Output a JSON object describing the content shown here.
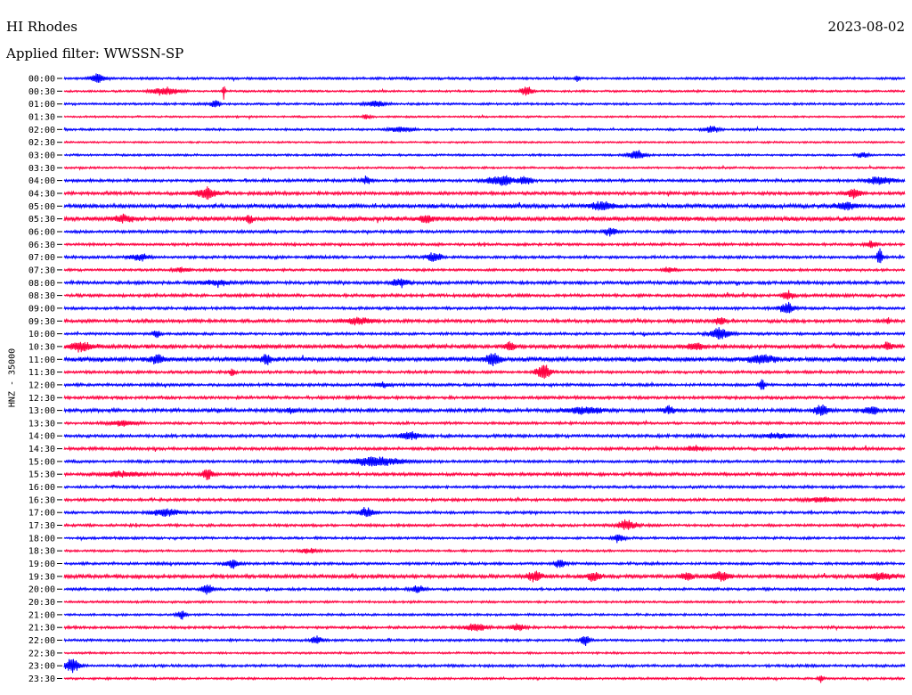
{
  "header": {
    "station": "HI Rhodes",
    "date": "2023-08-02",
    "filter_label": "Applied filter: WWSSN-SP"
  },
  "chart_data": {
    "type": "line",
    "title": "HI Rhodes",
    "subtitle": "Applied filter: WWSSN-SP",
    "date": "2023-08-02",
    "ylabel": "HNZ - 35000",
    "xlabel": "",
    "grid": false,
    "row_interval_minutes": 30,
    "colors": [
      "#0000ff",
      "#ff0040"
    ],
    "rows": [
      {
        "label": "00:00",
        "color": "#0000ff",
        "amp": 1.2,
        "events": [
          [
            0.04,
            6,
            10
          ],
          [
            0.61,
            4,
            3
          ]
        ]
      },
      {
        "label": "00:30",
        "color": "#ff0040",
        "amp": 1.0,
        "events": [
          [
            0.12,
            5,
            20
          ],
          [
            0.55,
            6,
            8
          ],
          [
            0.19,
            9,
            2
          ]
        ]
      },
      {
        "label": "01:00",
        "color": "#0000ff",
        "amp": 1.1,
        "events": [
          [
            0.18,
            5,
            6
          ],
          [
            0.37,
            4,
            14
          ]
        ]
      },
      {
        "label": "01:30",
        "color": "#ff0040",
        "amp": 0.9,
        "events": [
          [
            0.36,
            3,
            5
          ]
        ]
      },
      {
        "label": "02:00",
        "color": "#0000ff",
        "amp": 1.1,
        "events": [
          [
            0.4,
            3,
            18
          ],
          [
            0.77,
            4,
            10
          ]
        ]
      },
      {
        "label": "02:30",
        "color": "#ff0040",
        "amp": 0.9,
        "events": []
      },
      {
        "label": "03:00",
        "color": "#0000ff",
        "amp": 1.0,
        "events": [
          [
            0.68,
            6,
            12
          ],
          [
            0.95,
            3,
            8
          ]
        ]
      },
      {
        "label": "03:30",
        "color": "#ff0040",
        "amp": 1.0,
        "events": []
      },
      {
        "label": "04:00",
        "color": "#0000ff",
        "amp": 1.4,
        "events": [
          [
            0.36,
            5,
            6
          ],
          [
            0.52,
            6,
            20
          ],
          [
            0.55,
            5,
            8
          ],
          [
            0.97,
            5,
            18
          ]
        ]
      },
      {
        "label": "04:30",
        "color": "#ff0040",
        "amp": 1.6,
        "events": [
          [
            0.17,
            7,
            14
          ],
          [
            0.94,
            6,
            10
          ]
        ]
      },
      {
        "label": "05:00",
        "color": "#0000ff",
        "amp": 2.0,
        "events": [
          [
            0.64,
            5,
            16
          ],
          [
            0.93,
            4,
            16
          ]
        ]
      },
      {
        "label": "05:30",
        "color": "#ff0040",
        "amp": 2.2,
        "events": [
          [
            0.22,
            5,
            6
          ],
          [
            0.07,
            4,
            14
          ],
          [
            0.43,
            4,
            10
          ]
        ]
      },
      {
        "label": "06:00",
        "color": "#0000ff",
        "amp": 1.4,
        "events": [
          [
            0.65,
            5,
            10
          ]
        ]
      },
      {
        "label": "06:30",
        "color": "#ff0040",
        "amp": 1.3,
        "events": [
          [
            0.96,
            4,
            8
          ]
        ]
      },
      {
        "label": "07:00",
        "color": "#0000ff",
        "amp": 1.4,
        "events": [
          [
            0.09,
            4,
            14
          ],
          [
            0.44,
            6,
            10
          ],
          [
            0.97,
            11,
            4
          ]
        ]
      },
      {
        "label": "07:30",
        "color": "#ff0040",
        "amp": 1.2,
        "events": [
          [
            0.14,
            3,
            10
          ],
          [
            0.72,
            3,
            10
          ]
        ]
      },
      {
        "label": "08:00",
        "color": "#0000ff",
        "amp": 1.6,
        "events": [
          [
            0.18,
            3,
            20
          ],
          [
            0.4,
            5,
            12
          ]
        ]
      },
      {
        "label": "08:30",
        "color": "#ff0040",
        "amp": 1.5,
        "events": [
          [
            0.86,
            5,
            8
          ]
        ]
      },
      {
        "label": "09:00",
        "color": "#0000ff",
        "amp": 1.4,
        "events": [
          [
            0.86,
            7,
            10
          ]
        ]
      },
      {
        "label": "09:30",
        "color": "#ff0040",
        "amp": 1.6,
        "events": [
          [
            0.35,
            4,
            20
          ],
          [
            0.78,
            5,
            8
          ],
          [
            0.98,
            3,
            4
          ]
        ]
      },
      {
        "label": "10:00",
        "color": "#0000ff",
        "amp": 1.3,
        "events": [
          [
            0.11,
            4,
            6
          ],
          [
            0.78,
            7,
            14
          ]
        ]
      },
      {
        "label": "10:30",
        "color": "#ff0040",
        "amp": 1.9,
        "events": [
          [
            0.02,
            6,
            16
          ],
          [
            0.53,
            6,
            6
          ],
          [
            0.75,
            4,
            12
          ],
          [
            0.98,
            5,
            6
          ]
        ]
      },
      {
        "label": "11:00",
        "color": "#0000ff",
        "amp": 2.2,
        "events": [
          [
            0.11,
            5,
            10
          ],
          [
            0.24,
            5,
            8
          ],
          [
            0.51,
            7,
            10
          ],
          [
            0.83,
            6,
            18
          ]
        ]
      },
      {
        "label": "11:30",
        "color": "#ff0040",
        "amp": 1.4,
        "events": [
          [
            0.2,
            5,
            4
          ],
          [
            0.57,
            9,
            10
          ]
        ]
      },
      {
        "label": "12:00",
        "color": "#0000ff",
        "amp": 1.4,
        "events": [
          [
            0.38,
            3,
            10
          ],
          [
            0.83,
            7,
            4
          ]
        ]
      },
      {
        "label": "12:30",
        "color": "#ff0040",
        "amp": 1.5,
        "events": []
      },
      {
        "label": "13:00",
        "color": "#0000ff",
        "amp": 1.8,
        "events": [
          [
            0.27,
            3,
            8
          ],
          [
            0.62,
            4,
            24
          ],
          [
            0.72,
            5,
            8
          ],
          [
            0.9,
            7,
            10
          ],
          [
            0.96,
            5,
            10
          ]
        ]
      },
      {
        "label": "13:30",
        "color": "#ff0040",
        "amp": 1.3,
        "events": [
          [
            0.07,
            3,
            20
          ]
        ]
      },
      {
        "label": "14:00",
        "color": "#0000ff",
        "amp": 1.5,
        "events": [
          [
            0.41,
            5,
            14
          ],
          [
            0.85,
            3,
            20
          ]
        ]
      },
      {
        "label": "14:30",
        "color": "#ff0040",
        "amp": 1.5,
        "events": [
          [
            0.75,
            3,
            14
          ]
        ]
      },
      {
        "label": "15:00",
        "color": "#0000ff",
        "amp": 1.3,
        "events": [
          [
            0.37,
            6,
            36
          ]
        ]
      },
      {
        "label": "15:30",
        "color": "#ff0040",
        "amp": 1.5,
        "events": [
          [
            0.07,
            3,
            28
          ],
          [
            0.17,
            6,
            8
          ]
        ]
      },
      {
        "label": "16:00",
        "color": "#0000ff",
        "amp": 1.3,
        "events": []
      },
      {
        "label": "16:30",
        "color": "#ff0040",
        "amp": 1.4,
        "events": [
          [
            0.9,
            3,
            20
          ]
        ]
      },
      {
        "label": "17:00",
        "color": "#0000ff",
        "amp": 1.3,
        "events": [
          [
            0.12,
            5,
            18
          ],
          [
            0.36,
            6,
            10
          ]
        ]
      },
      {
        "label": "17:30",
        "color": "#ff0040",
        "amp": 1.3,
        "events": [
          [
            0.67,
            7,
            12
          ]
        ]
      },
      {
        "label": "18:00",
        "color": "#0000ff",
        "amp": 1.2,
        "events": [
          [
            0.66,
            5,
            8
          ]
        ]
      },
      {
        "label": "18:30",
        "color": "#ff0040",
        "amp": 1.1,
        "events": [
          [
            0.29,
            3,
            12
          ]
        ]
      },
      {
        "label": "19:00",
        "color": "#0000ff",
        "amp": 1.3,
        "events": [
          [
            0.2,
            5,
            10
          ],
          [
            0.59,
            5,
            8
          ]
        ]
      },
      {
        "label": "19:30",
        "color": "#ff0040",
        "amp": 1.8,
        "events": [
          [
            0.56,
            6,
            10
          ],
          [
            0.63,
            5,
            10
          ],
          [
            0.74,
            5,
            8
          ],
          [
            0.78,
            6,
            12
          ],
          [
            0.97,
            4,
            18
          ]
        ]
      },
      {
        "label": "20:00",
        "color": "#0000ff",
        "amp": 1.3,
        "events": [
          [
            0.17,
            6,
            8
          ],
          [
            0.42,
            4,
            10
          ]
        ]
      },
      {
        "label": "20:30",
        "color": "#ff0040",
        "amp": 1.1,
        "events": []
      },
      {
        "label": "21:00",
        "color": "#0000ff",
        "amp": 1.1,
        "events": [
          [
            0.14,
            6,
            6
          ]
        ]
      },
      {
        "label": "21:30",
        "color": "#ff0040",
        "amp": 1.3,
        "events": [
          [
            0.49,
            5,
            14
          ],
          [
            0.54,
            4,
            10
          ]
        ]
      },
      {
        "label": "22:00",
        "color": "#0000ff",
        "amp": 1.2,
        "events": [
          [
            0.3,
            5,
            8
          ],
          [
            0.62,
            8,
            6
          ]
        ]
      },
      {
        "label": "22:30",
        "color": "#ff0040",
        "amp": 1.0,
        "events": []
      },
      {
        "label": "23:00",
        "color": "#0000ff",
        "amp": 1.3,
        "events": [
          [
            0.01,
            9,
            10
          ]
        ]
      },
      {
        "label": "23:30",
        "color": "#ff0040",
        "amp": 1.1,
        "events": [
          [
            0.9,
            5,
            4
          ]
        ]
      }
    ]
  }
}
